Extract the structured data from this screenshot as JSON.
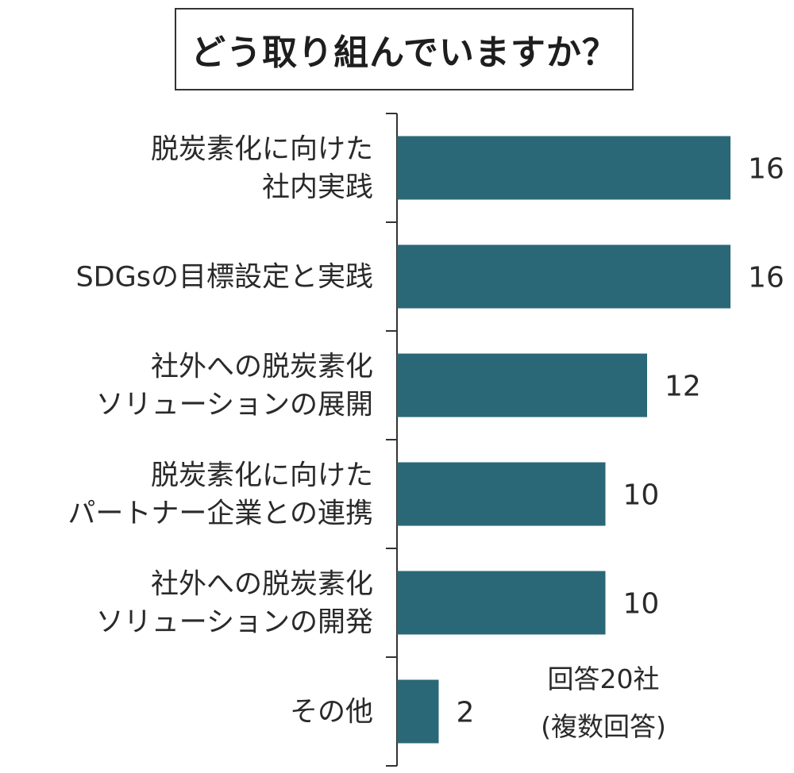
{
  "title": "どう取り組んでいますか？",
  "note": {
    "line1": "回答20社",
    "line2": "(複数回答)"
  },
  "colors": {
    "bar": "#2a6878",
    "axis": "#333333",
    "text": "#2a2a2a"
  },
  "chart_data": {
    "type": "bar",
    "orientation": "horizontal",
    "categories": [
      [
        "脱炭素化に向けた",
        "社内実践"
      ],
      [
        "SDGsの目標設定と実践"
      ],
      [
        "社外への脱炭素化",
        "ソリューションの展開"
      ],
      [
        "脱炭素化に向けた",
        "パートナー企業との連携"
      ],
      [
        "社外への脱炭素化",
        "ソリューションの開発"
      ],
      [
        "その他"
      ]
    ],
    "values": [
      16,
      16,
      12,
      10,
      10,
      2
    ],
    "xlim": [
      0,
      16
    ],
    "grid": false,
    "legend": "none"
  }
}
